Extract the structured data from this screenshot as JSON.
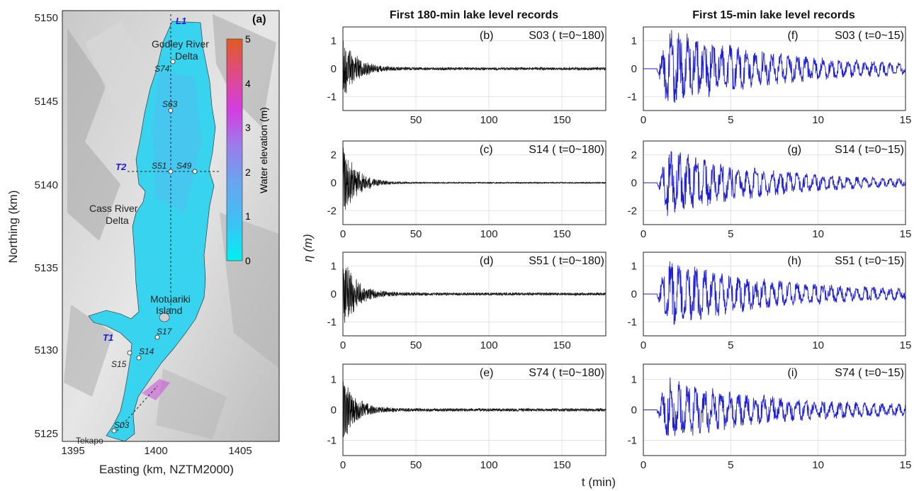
{
  "titles": {
    "col1": "First 180-min lake level records",
    "col2": "First 15-min lake level records"
  },
  "map": {
    "panel_label": "(a)",
    "xlabel": "Easting (km, NZTM2000)",
    "ylabel": "Northing (km)",
    "xticks": [
      "1395",
      "1400",
      "1405"
    ],
    "yticks": [
      "5125",
      "5130",
      "5135",
      "5140",
      "5145",
      "5150"
    ],
    "colorbar_label": "Water elevation (m)",
    "colorbar_ticks": [
      "0",
      "1",
      "2",
      "3",
      "4",
      "5"
    ],
    "colorbar_colors": [
      "#00f0f0",
      "#3fb6f5",
      "#6aa4ee",
      "#9b7cea",
      "#d33ee0",
      "#e04a8a",
      "#e05a20"
    ],
    "places": {
      "godley1": "Godley River",
      "godley2": "Delta",
      "cass1": "Cass River",
      "cass2": "Delta",
      "motu1": "Motuariki",
      "motu2": "Island",
      "tekapo": "Tekapo"
    },
    "lines": {
      "l1": "L1",
      "t1": "T1",
      "t2": "T2"
    },
    "stations": [
      "S74",
      "S63",
      "S51",
      "S49",
      "S17",
      "S14",
      "S15",
      "S03"
    ]
  },
  "chart_data": [
    {
      "type": "line",
      "panel": "(b)",
      "series": [
        {
          "name": "S03 ( t=0~180)",
          "amplitude": 1.1,
          "color": "#000000"
        }
      ],
      "xlim": [
        0,
        180
      ],
      "ylim": [
        -1.5,
        1.5
      ],
      "xticks": [
        50,
        100,
        150
      ],
      "yticks": [
        -1,
        0,
        1
      ]
    },
    {
      "type": "line",
      "panel": "(c)",
      "series": [
        {
          "name": "S14 ( t=0~180)",
          "amplitude": 2.6,
          "color": "#000000"
        }
      ],
      "xlim": [
        0,
        180
      ],
      "ylim": [
        -3,
        3
      ],
      "xticks": [
        0,
        50,
        100,
        150
      ],
      "yticks": [
        -2,
        0,
        2
      ]
    },
    {
      "type": "line",
      "panel": "(d)",
      "series": [
        {
          "name": "S51 ( t=0~180)",
          "amplitude": 1.25,
          "color": "#000000"
        }
      ],
      "xlim": [
        0,
        180
      ],
      "ylim": [
        -1.5,
        1.5
      ],
      "xticks": [
        0,
        50,
        100,
        150
      ],
      "yticks": [
        -1,
        0,
        1
      ]
    },
    {
      "type": "line",
      "panel": "(e)",
      "series": [
        {
          "name": "S74 ( t=0~180)",
          "amplitude": 1.0,
          "color": "#000000"
        }
      ],
      "xlim": [
        0,
        180
      ],
      "ylim": [
        -1.5,
        1.5
      ],
      "xticks": [
        0,
        50,
        100,
        150
      ],
      "yticks": [
        -1,
        0,
        1
      ]
    },
    {
      "type": "line",
      "panel": "(f)",
      "series": [
        {
          "name": "S03 ( t=0~15)",
          "amplitude": 1.5,
          "color": "#1f1fd6"
        }
      ],
      "xlim": [
        0,
        15
      ],
      "ylim": [
        -1.5,
        1.5
      ],
      "xticks": [
        0,
        5,
        10,
        15
      ],
      "yticks": [
        -1,
        0,
        1
      ]
    },
    {
      "type": "line",
      "panel": "(g)",
      "series": [
        {
          "name": "S14 ( t=0~15)",
          "amplitude": 2.6,
          "color": "#1f1fd6"
        }
      ],
      "xlim": [
        0,
        15
      ],
      "ylim": [
        -3,
        3
      ],
      "xticks": [
        0,
        5,
        10,
        15
      ],
      "yticks": [
        -2,
        0,
        2
      ]
    },
    {
      "type": "line",
      "panel": "(h)",
      "series": [
        {
          "name": "S51 ( t=0~15)",
          "amplitude": 1.25,
          "color": "#1f1fd6"
        }
      ],
      "xlim": [
        0,
        15
      ],
      "ylim": [
        -1.5,
        1.5
      ],
      "xticks": [
        0,
        5,
        10,
        15
      ],
      "yticks": [
        -1,
        0,
        1
      ]
    },
    {
      "type": "line",
      "panel": "(i)",
      "series": [
        {
          "name": "S74 ( t=0~15)",
          "amplitude": 1.05,
          "color": "#1f1fd6"
        }
      ],
      "xlim": [
        0,
        15
      ],
      "ylim": [
        -1.5,
        1.5
      ],
      "xticks": [
        0,
        5,
        10,
        15
      ],
      "yticks": [
        -1,
        0,
        1
      ]
    }
  ],
  "shared": {
    "ylabel": "η (m)",
    "xlabel": "t (min)"
  }
}
